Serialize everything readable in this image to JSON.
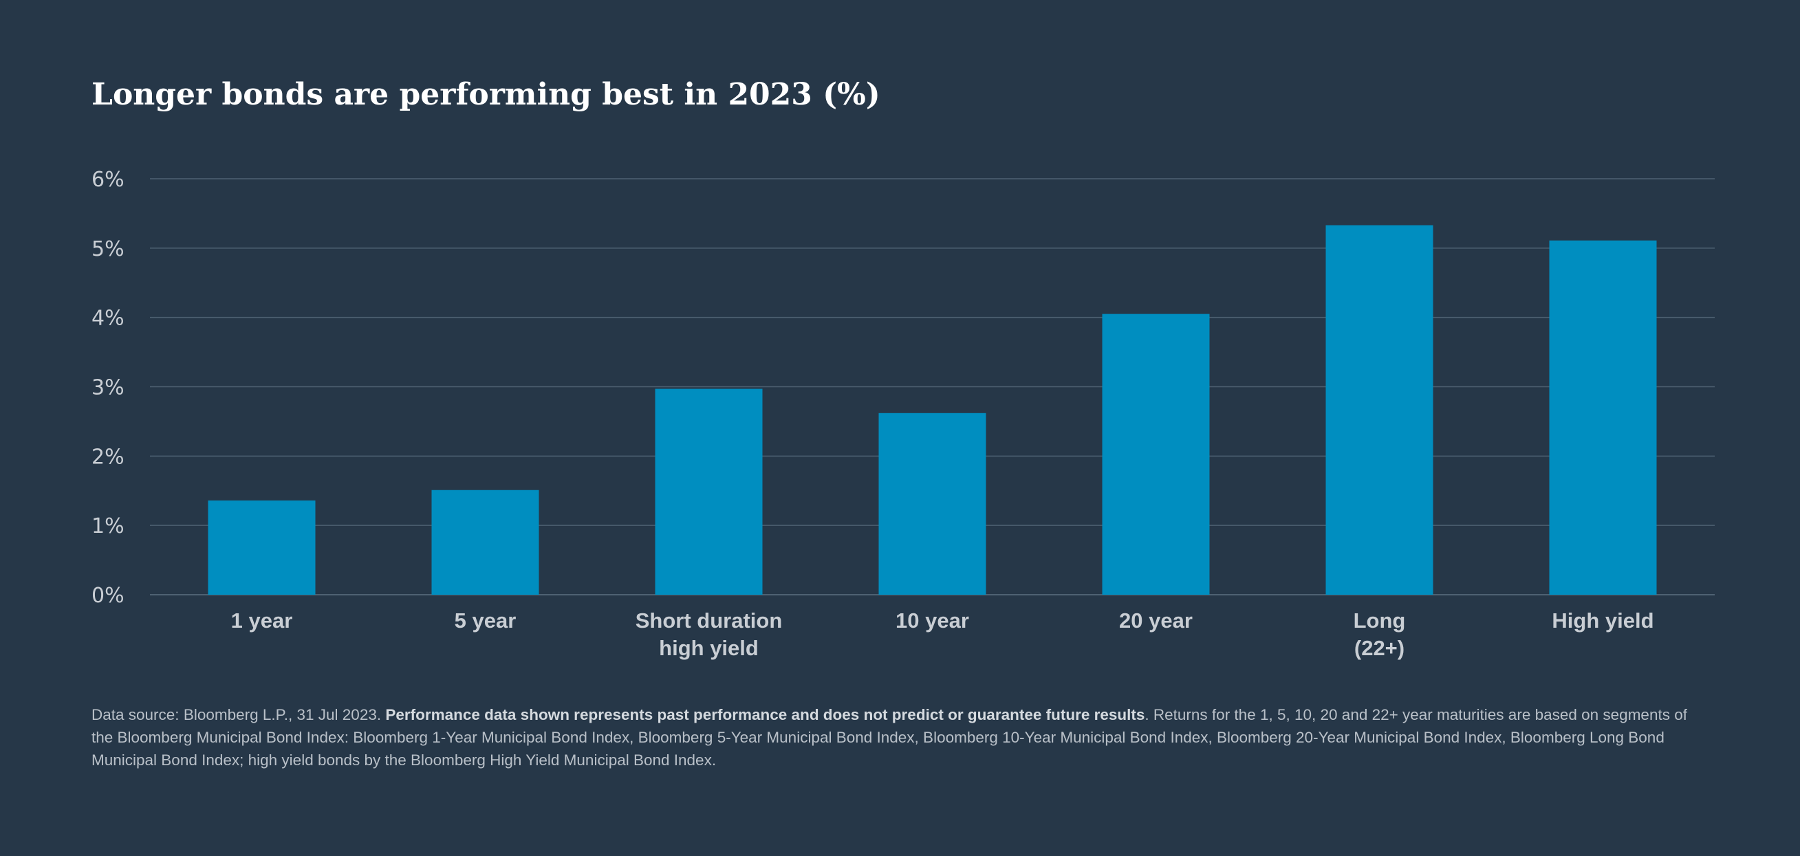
{
  "chart_data": {
    "type": "bar",
    "title": "Longer bonds are performing best in 2023 (%)",
    "xlabel": "",
    "ylabel": "",
    "ylim": [
      0,
      6
    ],
    "yticks": [
      "0%",
      "1%",
      "2%",
      "3%",
      "4%",
      "5%",
      "6%"
    ],
    "grid": true,
    "categories": [
      [
        "1 year"
      ],
      [
        "5 year"
      ],
      [
        "Short duration",
        "high yield"
      ],
      [
        "10 year"
      ],
      [
        "20 year"
      ],
      [
        "Long",
        "(22+)"
      ],
      [
        "High yield"
      ]
    ],
    "values": [
      1.36,
      1.51,
      2.97,
      2.62,
      4.05,
      5.33,
      5.11
    ],
    "colors": {
      "background": "#263748",
      "bar": "#008ec0",
      "gridline": "#4e6172",
      "axis_text": "#c9ced4",
      "title": "#ffffff"
    }
  },
  "footnote": {
    "source": "Data source: Bloomberg L.P., 31 Jul 2023. ",
    "disclaimer": "Performance data shown represents past performance and does not predict or guarantee future results",
    "details": ". Returns for the 1, 5, 10, 20 and 22+ year maturities are based on segments of the Bloomberg Municipal Bond Index: Bloomberg 1-Year Municipal Bond Index, Bloomberg 5-Year Municipal Bond Index, Bloomberg 10-Year Municipal Bond Index, Bloomberg 20-Year Municipal Bond Index, Bloomberg Long Bond Municipal Bond Index; high yield bonds by the Bloomberg High Yield Municipal Bond Index."
  }
}
